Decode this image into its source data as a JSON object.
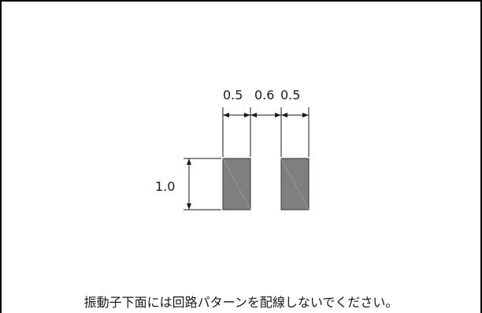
{
  "dimensions": {
    "top_left": "0.5",
    "top_middle": "0.6",
    "top_right": "0.5",
    "height": "1.0"
  },
  "colors": {
    "pad_fill": "#7f7f7f",
    "pad_stroke": "#333333",
    "line": "#1a1a1a",
    "frame": "#000000"
  },
  "caption": "振動子下面には回路パターンを配線しないでください。"
}
